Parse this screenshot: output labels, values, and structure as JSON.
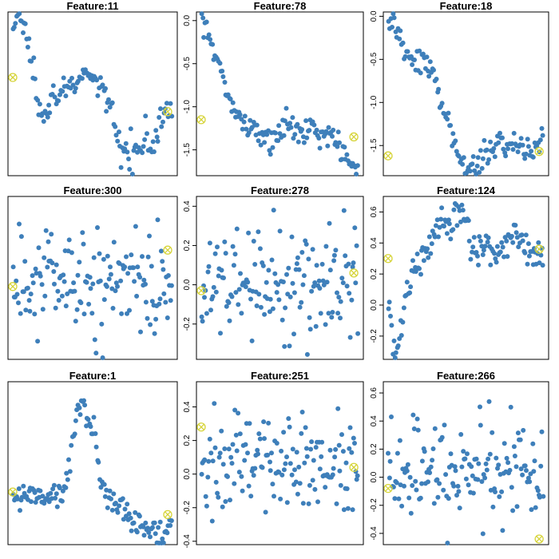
{
  "figure": {
    "point_color": "#3E7FBA",
    "marker_color": "#D6D43A"
  },
  "chart_data": [
    {
      "type": "scatter",
      "title": "Feature:11",
      "ylim": [
        -1.9,
        0.35
      ],
      "yticks": [],
      "ytick_labels": [],
      "n_points": 130,
      "points": [
        [
          0,
          0.1
        ],
        [
          0.03,
          0.3
        ],
        [
          0.06,
          0.22
        ],
        [
          0.09,
          0.0
        ],
        [
          0.11,
          -0.3
        ],
        [
          0.14,
          -0.55
        ],
        [
          0.17,
          -0.9
        ],
        [
          0.2,
          -1.0
        ],
        [
          0.23,
          -0.9
        ],
        [
          0.26,
          -0.8
        ],
        [
          0.29,
          -0.75
        ],
        [
          0.33,
          -0.72
        ],
        [
          0.36,
          -0.66
        ],
        [
          0.39,
          -0.64
        ],
        [
          0.42,
          -0.62
        ],
        [
          0.45,
          -0.58
        ],
        [
          0.48,
          -0.53
        ],
        [
          0.51,
          -0.55
        ],
        [
          0.54,
          -0.65
        ],
        [
          0.57,
          -0.8
        ],
        [
          0.6,
          -0.95
        ],
        [
          0.63,
          -1.1
        ],
        [
          0.66,
          -1.45
        ],
        [
          0.69,
          -1.55
        ],
        [
          0.72,
          -1.6
        ],
        [
          0.75,
          -1.58
        ],
        [
          0.78,
          -1.45
        ],
        [
          0.81,
          -1.38
        ],
        [
          0.84,
          -1.3
        ],
        [
          0.87,
          -1.52
        ],
        [
          0.9,
          -1.45
        ],
        [
          0.93,
          -1.1
        ],
        [
          0.95,
          -0.95
        ],
        [
          1.0,
          -0.92
        ]
      ],
      "markers": [
        [
          0.0,
          -0.55
        ],
        [
          0.97,
          -1.02
        ]
      ]
    },
    {
      "type": "scatter",
      "title": "Feature:78",
      "ylim": [
        -1.8,
        0.1
      ],
      "yticks": [
        0.0,
        -0.5,
        -1.0,
        -1.5
      ],
      "ytick_labels": [
        "0.0",
        "-0.5",
        "-1.0",
        "-1.5"
      ],
      "n_points": 130,
      "points": [
        [
          0,
          0.0
        ],
        [
          0.03,
          -0.05
        ],
        [
          0.06,
          -0.2
        ],
        [
          0.09,
          -0.45
        ],
        [
          0.12,
          -0.6
        ],
        [
          0.15,
          -0.75
        ],
        [
          0.18,
          -0.85
        ],
        [
          0.21,
          -1.0
        ],
        [
          0.24,
          -1.1
        ],
        [
          0.27,
          -1.2
        ],
        [
          0.3,
          -1.25
        ],
        [
          0.33,
          -1.28
        ],
        [
          0.36,
          -1.3
        ],
        [
          0.39,
          -1.28
        ],
        [
          0.42,
          -1.3
        ],
        [
          0.45,
          -1.4
        ],
        [
          0.48,
          -1.32
        ],
        [
          0.51,
          -1.3
        ],
        [
          0.54,
          -1.22
        ],
        [
          0.57,
          -1.25
        ],
        [
          0.6,
          -1.22
        ],
        [
          0.63,
          -1.3
        ],
        [
          0.66,
          -1.27
        ],
        [
          0.69,
          -1.25
        ],
        [
          0.72,
          -1.28
        ],
        [
          0.75,
          -1.3
        ],
        [
          0.78,
          -1.3
        ],
        [
          0.81,
          -1.28
        ],
        [
          0.84,
          -1.35
        ],
        [
          0.87,
          -1.45
        ],
        [
          0.9,
          -1.55
        ],
        [
          0.93,
          -1.65
        ],
        [
          0.96,
          -1.7
        ],
        [
          1.0,
          -1.75
        ]
      ],
      "markers": [
        [
          0.0,
          -1.15
        ],
        [
          0.97,
          -1.35
        ]
      ]
    },
    {
      "type": "scatter",
      "title": "Feature:18",
      "ylim": [
        -1.85,
        0.05
      ],
      "yticks": [
        0.0,
        -0.5,
        -1.0,
        -1.5
      ],
      "ytick_labels": [
        "0.0",
        "-0.5",
        "-1.0",
        "-1.5"
      ],
      "n_points": 130,
      "points": [
        [
          0,
          0.0
        ],
        [
          0.03,
          -0.1
        ],
        [
          0.06,
          -0.2
        ],
        [
          0.09,
          -0.3
        ],
        [
          0.12,
          -0.42
        ],
        [
          0.15,
          -0.48
        ],
        [
          0.18,
          -0.52
        ],
        [
          0.21,
          -0.48
        ],
        [
          0.24,
          -0.5
        ],
        [
          0.27,
          -0.55
        ],
        [
          0.3,
          -0.7
        ],
        [
          0.33,
          -0.9
        ],
        [
          0.36,
          -1.1
        ],
        [
          0.39,
          -1.3
        ],
        [
          0.42,
          -1.5
        ],
        [
          0.45,
          -1.65
        ],
        [
          0.48,
          -1.72
        ],
        [
          0.51,
          -1.75
        ],
        [
          0.54,
          -1.72
        ],
        [
          0.57,
          -1.68
        ],
        [
          0.6,
          -1.65
        ],
        [
          0.63,
          -1.6
        ],
        [
          0.66,
          -1.55
        ],
        [
          0.69,
          -1.5
        ],
        [
          0.72,
          -1.45
        ],
        [
          0.75,
          -1.48
        ],
        [
          0.78,
          -1.5
        ],
        [
          0.81,
          -1.52
        ],
        [
          0.84,
          -1.5
        ],
        [
          0.87,
          -1.55
        ],
        [
          0.9,
          -1.6
        ],
        [
          0.93,
          -1.55
        ],
        [
          0.96,
          -1.5
        ],
        [
          1.0,
          -1.45
        ]
      ],
      "markers": [
        [
          0.0,
          -1.62
        ],
        [
          0.97,
          -1.57
        ]
      ]
    },
    {
      "type": "scatter",
      "title": "Feature:300",
      "ylim": [
        -0.4,
        0.45
      ],
      "yticks": [],
      "ytick_labels": [],
      "n_points": 150,
      "noise": 0.13,
      "points": [
        [
          0,
          -0.05
        ],
        [
          0.2,
          0.05
        ],
        [
          0.4,
          0.0
        ],
        [
          0.6,
          0.0
        ],
        [
          0.8,
          0.0
        ],
        [
          1.0,
          0.02
        ]
      ],
      "markers": [
        [
          0.0,
          -0.02
        ],
        [
          0.97,
          0.17
        ]
      ]
    },
    {
      "type": "scatter",
      "title": "Feature:278",
      "ylim": [
        -0.38,
        0.45
      ],
      "yticks": [
        0.4,
        0.2,
        0.0,
        -0.2
      ],
      "ytick_labels": [
        "0.4",
        "0.2",
        "0.0",
        "-0.2"
      ],
      "n_points": 150,
      "noise": 0.14,
      "points": [
        [
          0,
          0.0
        ],
        [
          0.2,
          0.02
        ],
        [
          0.4,
          0.0
        ],
        [
          0.6,
          0.0
        ],
        [
          0.8,
          0.0
        ],
        [
          1.0,
          0.0
        ]
      ],
      "markers": [
        [
          0.0,
          -0.03
        ],
        [
          0.97,
          0.06
        ]
      ]
    },
    {
      "type": "scatter",
      "title": "Feature:124",
      "ylim": [
        -0.35,
        0.7
      ],
      "yticks": [
        0.6,
        0.4,
        0.2,
        0.0,
        -0.2
      ],
      "ytick_labels": [
        "0.6",
        "0.4",
        "0.2",
        "0.0",
        "-0.2"
      ],
      "n_points": 140,
      "points": [
        [
          0,
          -0.05
        ],
        [
          0.03,
          -0.2
        ],
        [
          0.06,
          -0.28
        ],
        [
          0.09,
          -0.1
        ],
        [
          0.12,
          0.1
        ],
        [
          0.15,
          0.2
        ],
        [
          0.18,
          0.25
        ],
        [
          0.21,
          0.3
        ],
        [
          0.24,
          0.35
        ],
        [
          0.27,
          0.4
        ],
        [
          0.3,
          0.45
        ],
        [
          0.33,
          0.5
        ],
        [
          0.36,
          0.55
        ],
        [
          0.39,
          0.5
        ],
        [
          0.42,
          0.55
        ],
        [
          0.45,
          0.6
        ],
        [
          0.48,
          0.58
        ],
        [
          0.51,
          0.5
        ],
        [
          0.54,
          0.4
        ],
        [
          0.57,
          0.35
        ],
        [
          0.6,
          0.38
        ],
        [
          0.63,
          0.4
        ],
        [
          0.66,
          0.35
        ],
        [
          0.69,
          0.3
        ],
        [
          0.72,
          0.35
        ],
        [
          0.75,
          0.38
        ],
        [
          0.78,
          0.42
        ],
        [
          0.81,
          0.48
        ],
        [
          0.84,
          0.45
        ],
        [
          0.87,
          0.4
        ],
        [
          0.9,
          0.35
        ],
        [
          0.93,
          0.3
        ],
        [
          0.96,
          0.32
        ],
        [
          1.0,
          0.3
        ]
      ],
      "markers": [
        [
          0.0,
          0.3
        ],
        [
          0.97,
          0.36
        ]
      ]
    },
    {
      "type": "scatter",
      "title": "Feature:1",
      "ylim": [
        -0.4,
        0.9
      ],
      "yticks": [],
      "ytick_labels": [],
      "n_points": 140,
      "points": [
        [
          0,
          0.0
        ],
        [
          0.05,
          0.02
        ],
        [
          0.1,
          0.0
        ],
        [
          0.15,
          -0.02
        ],
        [
          0.2,
          -0.05
        ],
        [
          0.25,
          -0.05
        ],
        [
          0.3,
          0.0
        ],
        [
          0.33,
          0.1
        ],
        [
          0.36,
          0.3
        ],
        [
          0.39,
          0.55
        ],
        [
          0.42,
          0.7
        ],
        [
          0.45,
          0.68
        ],
        [
          0.48,
          0.62
        ],
        [
          0.51,
          0.5
        ],
        [
          0.53,
          0.3
        ],
        [
          0.55,
          0.1
        ],
        [
          0.58,
          0.0
        ],
        [
          0.61,
          -0.05
        ],
        [
          0.64,
          -0.1
        ],
        [
          0.67,
          -0.12
        ],
        [
          0.7,
          -0.15
        ],
        [
          0.73,
          -0.18
        ],
        [
          0.76,
          -0.2
        ],
        [
          0.79,
          -0.22
        ],
        [
          0.82,
          -0.25
        ],
        [
          0.85,
          -0.28
        ],
        [
          0.88,
          -0.3
        ],
        [
          0.91,
          -0.28
        ],
        [
          0.94,
          -0.3
        ],
        [
          0.97,
          -0.27
        ],
        [
          1.0,
          -0.25
        ]
      ],
      "markers": [
        [
          0.0,
          0.02
        ],
        [
          0.97,
          -0.16
        ]
      ]
    },
    {
      "type": "scatter",
      "title": "Feature:251",
      "ylim": [
        -0.42,
        0.55
      ],
      "yticks": [
        0.4,
        0.2,
        0.0,
        -0.2,
        -0.4
      ],
      "ytick_labels": [
        "0.4",
        "0.2",
        "0.0",
        "-0.2",
        "-0.4"
      ],
      "n_points": 150,
      "noise": 0.15,
      "points": [
        [
          0,
          0.05
        ],
        [
          0.2,
          0.05
        ],
        [
          0.4,
          0.05
        ],
        [
          0.6,
          0.08
        ],
        [
          0.8,
          0.05
        ],
        [
          1.0,
          0.05
        ]
      ],
      "markers": [
        [
          0.0,
          0.28
        ],
        [
          0.97,
          0.04
        ]
      ]
    },
    {
      "type": "scatter",
      "title": "Feature:266",
      "ylim": [
        -0.48,
        0.68
      ],
      "yticks": [
        0.6,
        0.4,
        0.2,
        0.0,
        -0.2,
        -0.4
      ],
      "ytick_labels": [
        "0.6",
        "0.4",
        "0.2",
        "0.0",
        "-0.2",
        "-0.4"
      ],
      "n_points": 150,
      "noise": 0.17,
      "points": [
        [
          0,
          0.02
        ],
        [
          0.2,
          0.05
        ],
        [
          0.4,
          0.05
        ],
        [
          0.6,
          0.05
        ],
        [
          0.8,
          0.05
        ],
        [
          1.0,
          0.05
        ]
      ],
      "markers": [
        [
          0.0,
          -0.08
        ],
        [
          0.97,
          -0.44
        ]
      ]
    }
  ]
}
